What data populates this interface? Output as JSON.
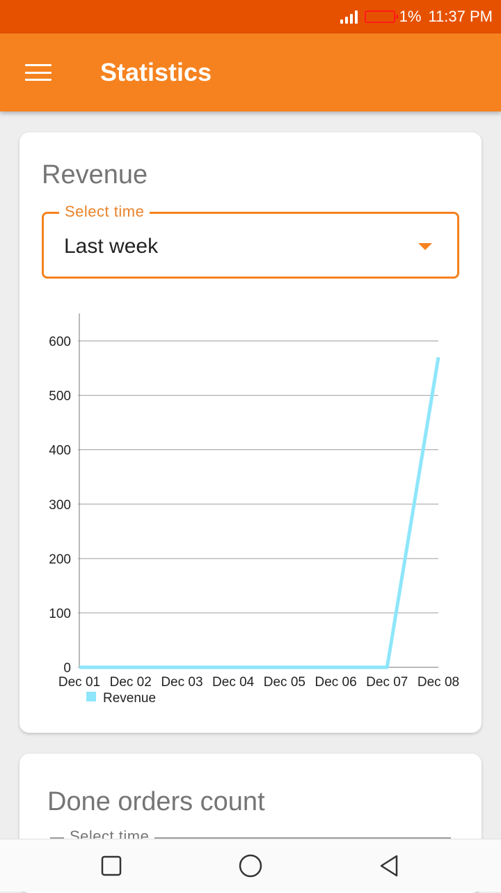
{
  "status_bar": {
    "battery_text": "1%",
    "time": "11:37 PM"
  },
  "app_bar": {
    "title": "Statistics"
  },
  "revenue_card": {
    "title": "Revenue",
    "select": {
      "label": "Select time",
      "value": "Last week"
    }
  },
  "orders_card": {
    "title": "Done orders count",
    "select": {
      "label": "Select time"
    }
  },
  "chart_data": {
    "type": "line",
    "categories": [
      "Dec 01",
      "Dec 02",
      "Dec 03",
      "Dec 04",
      "Dec 05",
      "Dec 06",
      "Dec 07",
      "Dec 08"
    ],
    "series": [
      {
        "name": "Revenue",
        "values": [
          0,
          0,
          0,
          0,
          0,
          0,
          0,
          570
        ],
        "color": "#8ee6fb"
      }
    ],
    "yticks": [
      0,
      100,
      200,
      300,
      400,
      500,
      600
    ],
    "ylim": [
      0,
      625
    ],
    "grid": true,
    "legend": "bottom-left"
  },
  "colors": {
    "status_bar": "#e65100",
    "app_bar": "#f5821f",
    "accent": "#f5821f"
  },
  "icons": {
    "menu": "menu-icon",
    "nav_recent": "square-icon",
    "nav_home": "circle-icon",
    "nav_back": "triangle-back-icon"
  }
}
